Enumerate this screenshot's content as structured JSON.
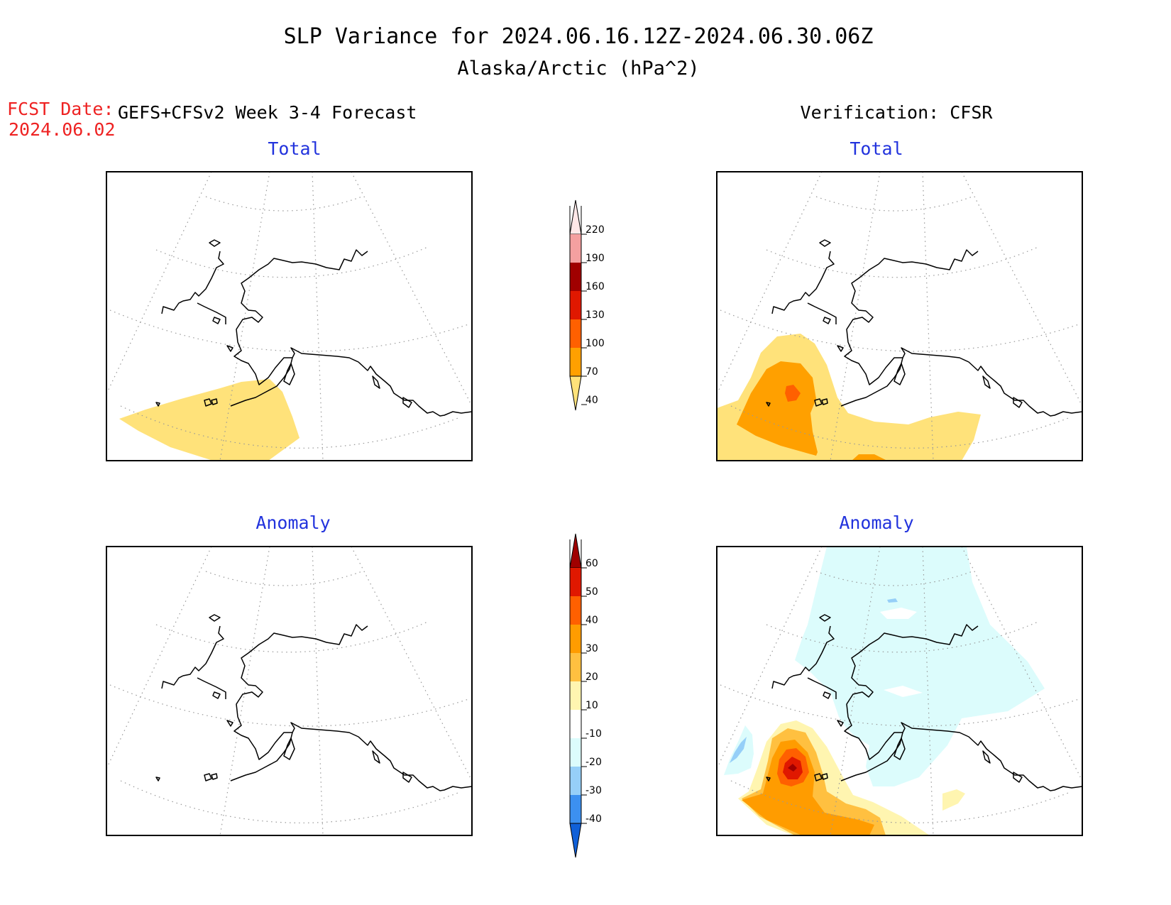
{
  "title": {
    "line1": "SLP Variance for 2024.06.16.12Z-2024.06.30.06Z",
    "line2": "Alaska/Arctic (hPa^2)"
  },
  "fcst": {
    "label": "FCST Date:",
    "date": "2024.06.02"
  },
  "columns": {
    "left": "GEFS+CFSv2 Week 3-4 Forecast",
    "right": "Verification: CFSR"
  },
  "panel_titles": {
    "total": "Total",
    "anomaly": "Anomaly"
  },
  "colors": {
    "title_blue": "#2233dd",
    "fcst_red": "#ee2222"
  },
  "colorbars": {
    "total": {
      "ticks": [
        "220",
        "190",
        "160",
        "130",
        "100",
        "70",
        "40"
      ],
      "levels": [
        40,
        70,
        100,
        130,
        160,
        190,
        220
      ],
      "colors": [
        "#ffe27a",
        "#ffa000",
        "#ff6000",
        "#e01800",
        "#a00000",
        "#f4a0a0",
        "#ffe8e8"
      ]
    },
    "anomaly": {
      "ticks": [
        "60",
        "50",
        "40",
        "30",
        "20",
        "10",
        "-10",
        "-20",
        "-30",
        "-40"
      ],
      "levels": [
        -40,
        -30,
        -20,
        -10,
        10,
        20,
        30,
        40,
        50,
        60
      ],
      "colors": [
        "#1060d8",
        "#3c90f0",
        "#96cff8",
        "#dcfcfc",
        "#ffffff",
        "#fff5b0",
        "#ffc040",
        "#ff9c00",
        "#ff6000",
        "#e01800",
        "#a00000"
      ]
    }
  }
}
